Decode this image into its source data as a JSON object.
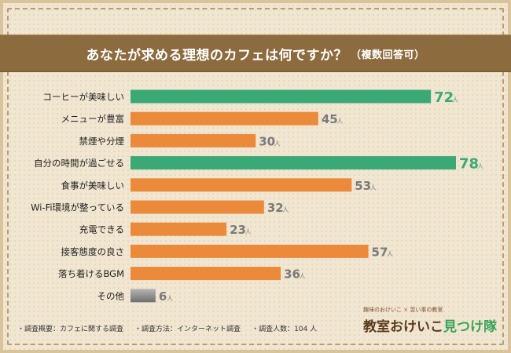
{
  "title": "あなたが求める理想のカフェは何ですか？",
  "title_note": "（複数回答可）",
  "colors": {
    "highlight": "#3aa976",
    "normal": "#ec8a3b",
    "other": "#8a8a8a"
  },
  "chart_data": {
    "type": "bar",
    "orientation": "horizontal",
    "title": "あなたが求める理想のカフェは何ですか？（複数回答可）",
    "unit": "人",
    "categories": [
      "コーヒーが美味しい",
      "メニューが豊富",
      "禁煙や分煙",
      "自分の時間が過ごせる",
      "食事が美味しい",
      "Wi-Fi環境が整っている",
      "充電できる",
      "接客態度の良さ",
      "落ち着けるBGM",
      "その他"
    ],
    "values": [
      72,
      45,
      30,
      78,
      53,
      32,
      23,
      57,
      36,
      6
    ],
    "bar_style": [
      "highlight",
      "normal",
      "normal",
      "highlight",
      "normal",
      "normal",
      "normal",
      "normal",
      "normal",
      "other"
    ],
    "xlim": [
      0,
      78
    ]
  },
  "footnotes": [
    "調査概要：カフェに関する調査",
    "調査方法：インターネット調査",
    "調査人数：104 人"
  ],
  "logo": {
    "tagline_a": "趣味のおけいこ",
    "tagline_sep": "×",
    "tagline_b": "習い事の教室",
    "name_a": "教室おけいこ",
    "name_b": "見つけ隊"
  }
}
